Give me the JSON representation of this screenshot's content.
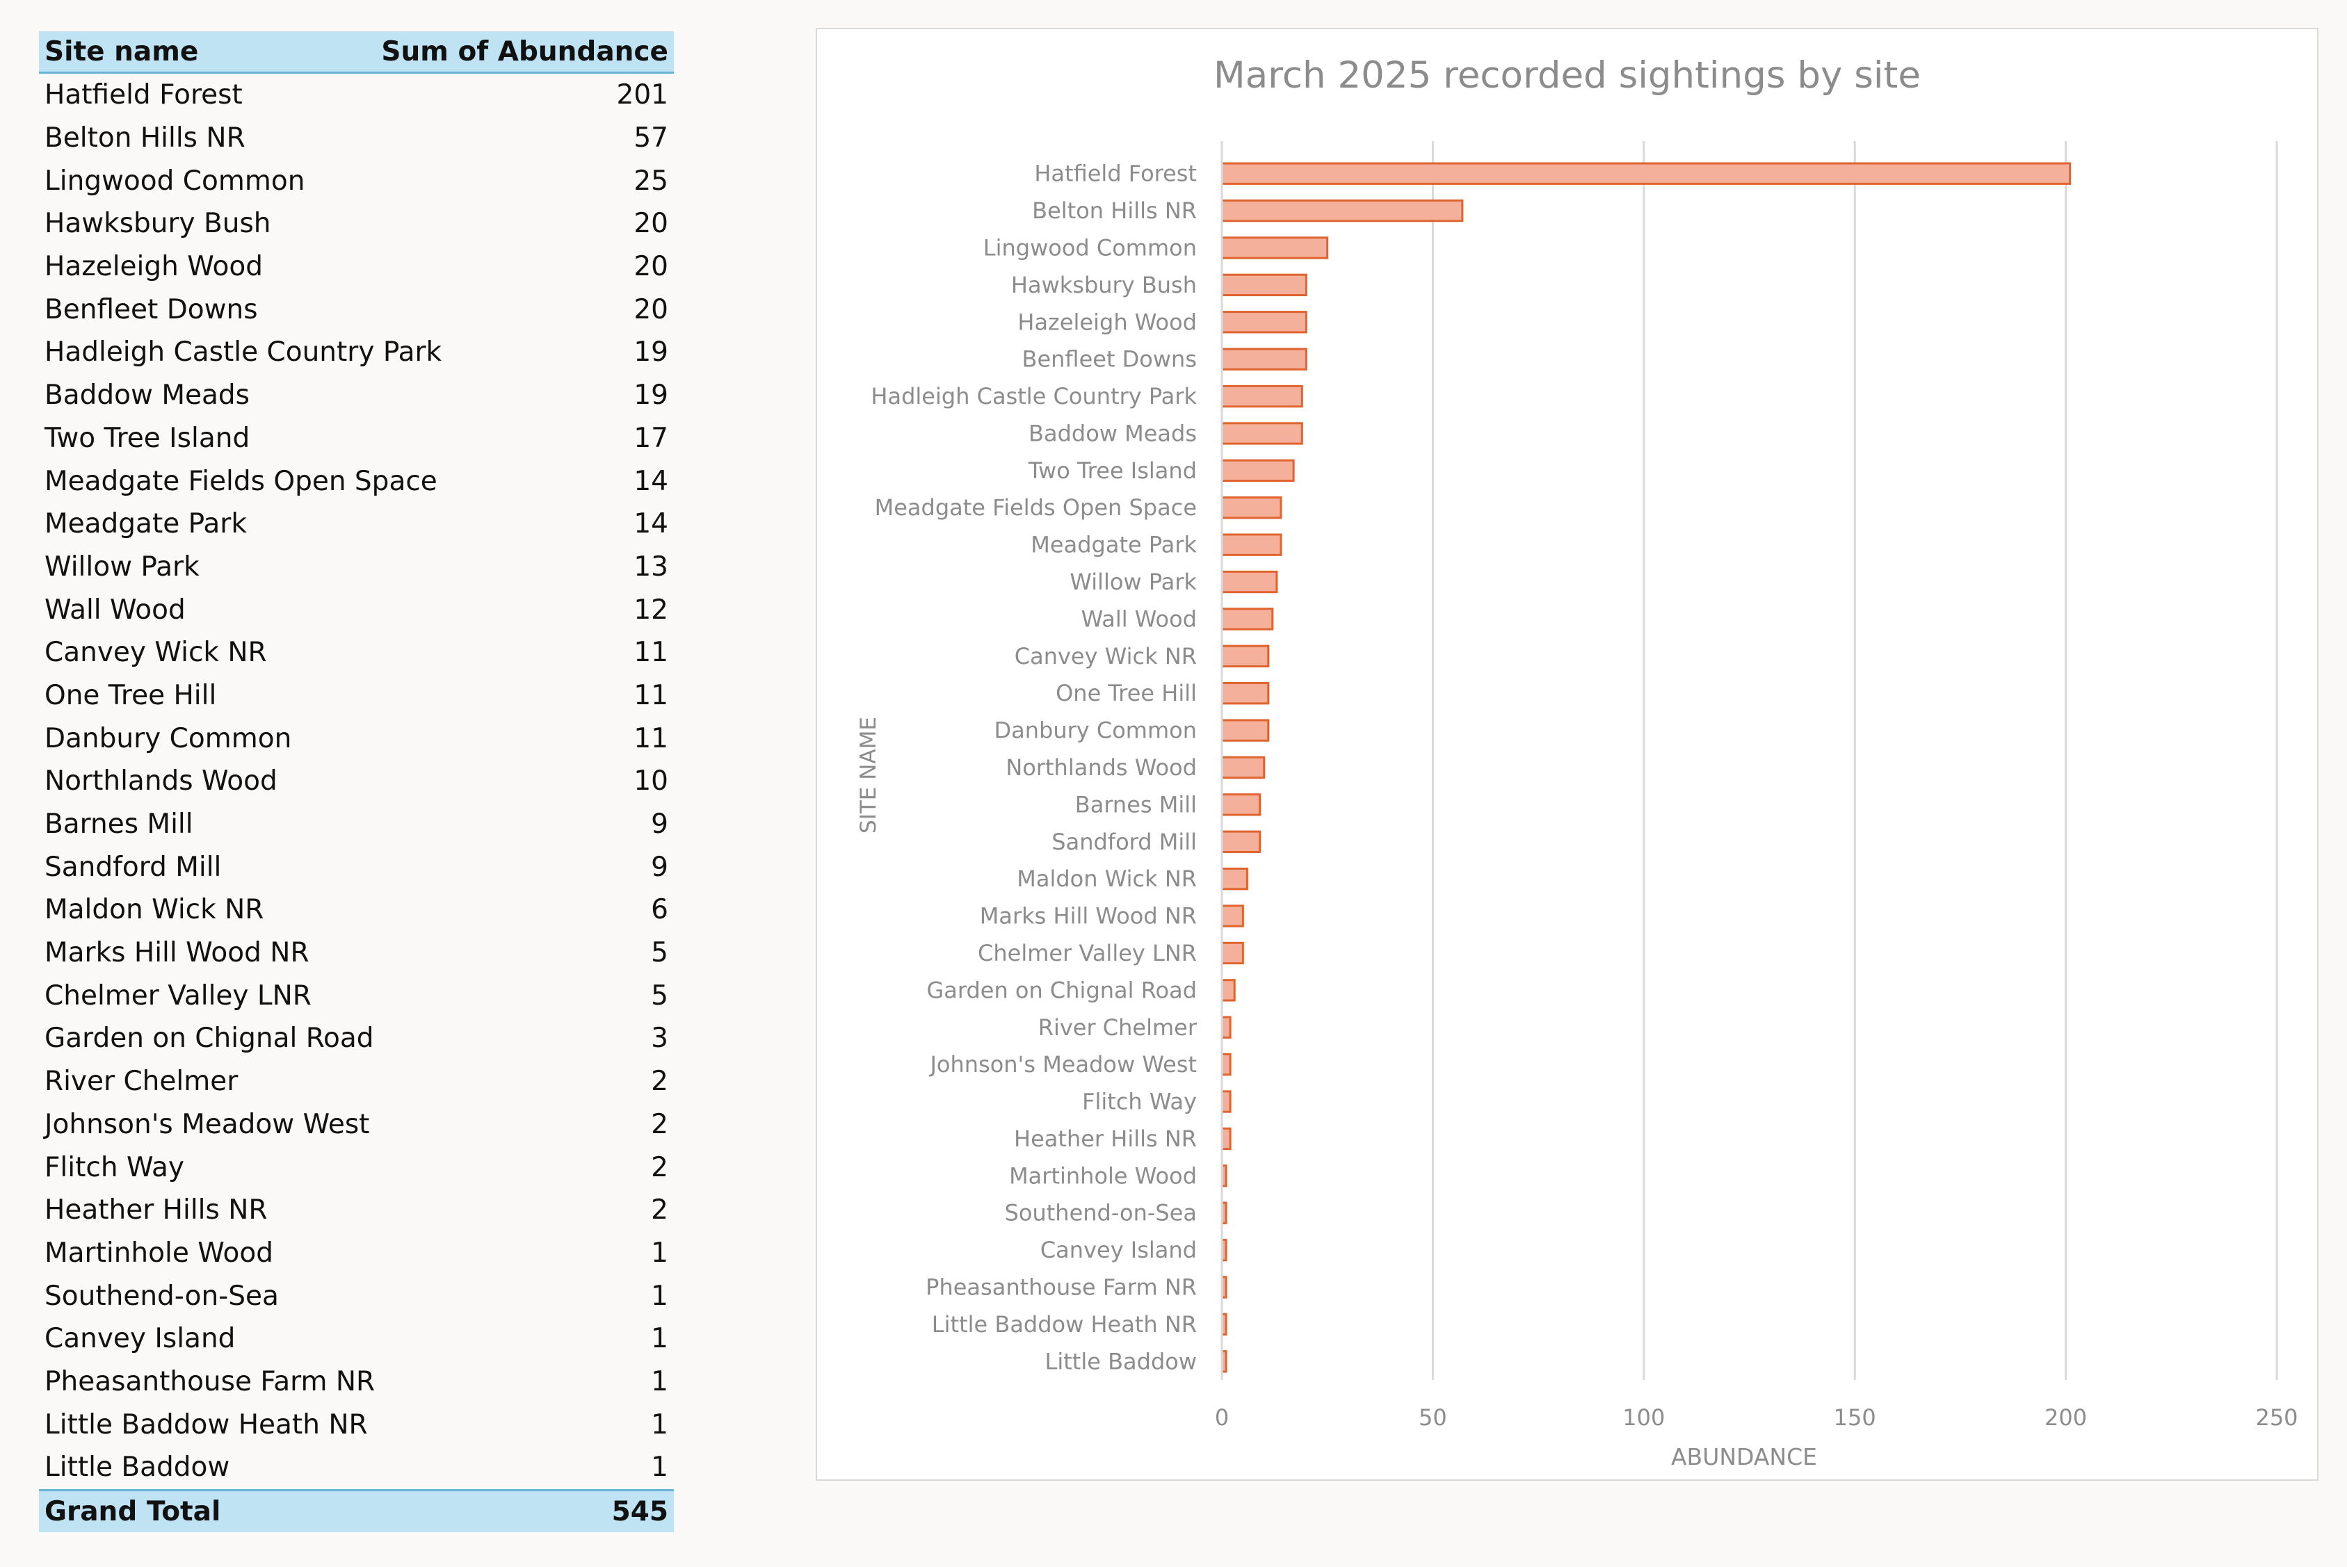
{
  "table": {
    "header_site": "Site name",
    "header_sum": "Sum of Abundance",
    "rows": [
      {
        "site": "Hatfield Forest",
        "value": "201"
      },
      {
        "site": "Belton Hills NR",
        "value": "57"
      },
      {
        "site": "Lingwood Common",
        "value": "25"
      },
      {
        "site": "Hawksbury Bush",
        "value": "20"
      },
      {
        "site": "Hazeleigh Wood",
        "value": "20"
      },
      {
        "site": "Benfleet Downs",
        "value": "20"
      },
      {
        "site": "Hadleigh Castle Country Park",
        "value": "19"
      },
      {
        "site": "Baddow Meads",
        "value": "19"
      },
      {
        "site": "Two Tree Island",
        "value": "17"
      },
      {
        "site": "Meadgate Fields Open Space",
        "value": "14"
      },
      {
        "site": "Meadgate Park",
        "value": "14"
      },
      {
        "site": "Willow Park",
        "value": "13"
      },
      {
        "site": "Wall Wood",
        "value": "12"
      },
      {
        "site": "Canvey Wick NR",
        "value": "11"
      },
      {
        "site": "One Tree Hill",
        "value": "11"
      },
      {
        "site": "Danbury Common",
        "value": "11"
      },
      {
        "site": "Northlands Wood",
        "value": "10"
      },
      {
        "site": "Barnes Mill",
        "value": "9"
      },
      {
        "site": "Sandford Mill",
        "value": "9"
      },
      {
        "site": "Maldon Wick NR",
        "value": "6"
      },
      {
        "site": "Marks Hill Wood NR",
        "value": "5"
      },
      {
        "site": "Chelmer Valley LNR",
        "value": "5"
      },
      {
        "site": "Garden on Chignal Road",
        "value": "3"
      },
      {
        "site": "River Chelmer",
        "value": "2"
      },
      {
        "site": "Johnson's Meadow West",
        "value": "2"
      },
      {
        "site": "Flitch Way",
        "value": "2"
      },
      {
        "site": "Heather Hills NR",
        "value": "2"
      },
      {
        "site": "Martinhole Wood",
        "value": "1"
      },
      {
        "site": "Southend-on-Sea",
        "value": "1"
      },
      {
        "site": "Canvey Island",
        "value": "1"
      },
      {
        "site": "Pheasanthouse Farm NR",
        "value": "1"
      },
      {
        "site": "Little Baddow Heath NR",
        "value": "1"
      },
      {
        "site": "Little Baddow",
        "value": "1"
      }
    ],
    "total_label": "Grand Total",
    "total_value": "545"
  },
  "colors": {
    "bar_fill": "#f4b09a",
    "bar_stroke": "#e0642f",
    "header_fill": "#bfe3f3",
    "header_rule": "#6ab3d6",
    "grid": "#d9d9d9",
    "text_muted": "#8c8c8c"
  },
  "chart_data": {
    "type": "bar",
    "orientation": "horizontal",
    "title": "March 2025 recorded sightings by site",
    "xlabel": "ABUNDANCE",
    "ylabel": "SITE NAME",
    "xlim": [
      0,
      250
    ],
    "xticks": [
      "0",
      "50",
      "100",
      "150",
      "200",
      "250"
    ],
    "grid": "vertical",
    "legend": "none",
    "categories": [
      "Hatfield Forest",
      "Belton Hills NR",
      "Lingwood Common",
      "Hawksbury Bush",
      "Hazeleigh Wood",
      "Benfleet Downs",
      "Hadleigh Castle Country Park",
      "Baddow Meads",
      "Two Tree Island",
      "Meadgate Fields Open Space",
      "Meadgate Park",
      "Willow Park",
      "Wall Wood",
      "Canvey Wick NR",
      "One Tree Hill",
      "Danbury Common",
      "Northlands Wood",
      "Barnes Mill",
      "Sandford Mill",
      "Maldon Wick NR",
      "Marks Hill Wood NR",
      "Chelmer Valley LNR",
      "Garden on Chignal Road",
      "River Chelmer",
      "Johnson's Meadow West",
      "Flitch Way",
      "Heather Hills NR",
      "Martinhole Wood",
      "Southend-on-Sea",
      "Canvey Island",
      "Pheasanthouse Farm NR",
      "Little Baddow Heath NR",
      "Little Baddow"
    ],
    "values": [
      201,
      57,
      25,
      20,
      20,
      20,
      19,
      19,
      17,
      14,
      14,
      13,
      12,
      11,
      11,
      11,
      10,
      9,
      9,
      6,
      5,
      5,
      3,
      2,
      2,
      2,
      2,
      1,
      1,
      1,
      1,
      1,
      1
    ]
  }
}
